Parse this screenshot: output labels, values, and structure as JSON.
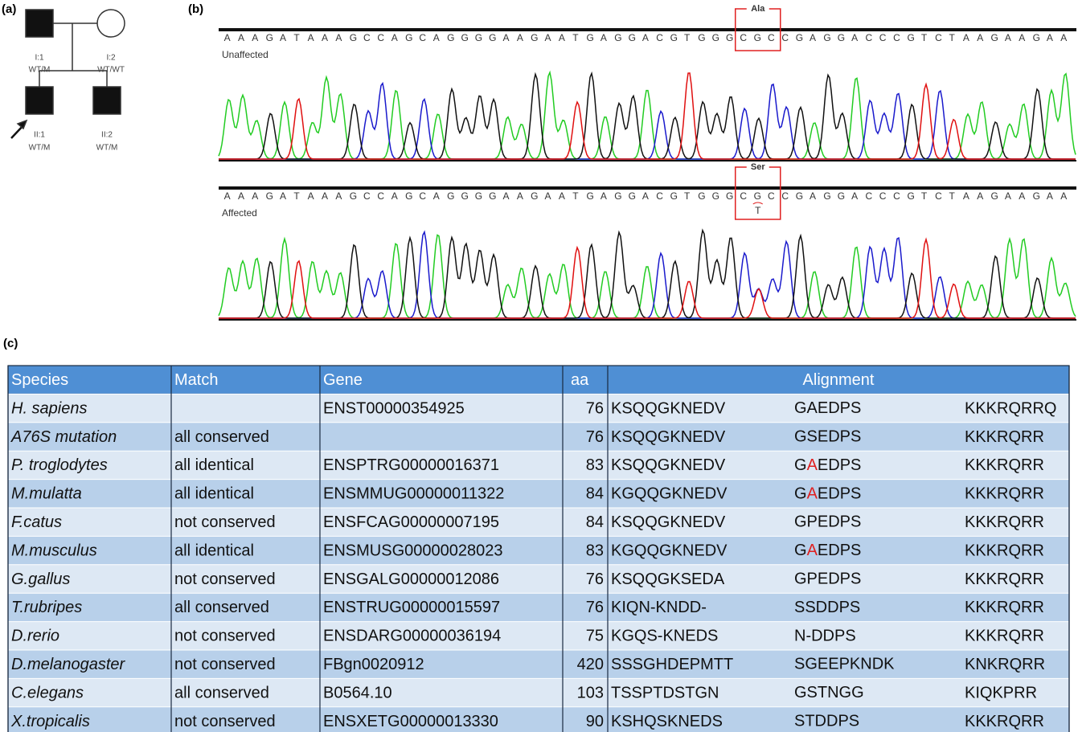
{
  "panel_a": {
    "label": "(a)",
    "individuals": [
      {
        "id": "I:1",
        "genotype": "WT/M"
      },
      {
        "id": "I:2",
        "genotype": "WT/WT"
      },
      {
        "id": "II:1",
        "genotype": "WT/M"
      },
      {
        "id": "II:2",
        "genotype": "WT/M"
      }
    ]
  },
  "panel_b": {
    "label": "(b)",
    "sequence": {
      "before": "AAAGATAAAGCCAGCAGGGGAAGAATGAGGACGTGGG",
      "codon": "CGC",
      "after": "CGAGGACCCGTCTAAGAAGAA"
    },
    "traces": [
      {
        "name": "Unaffected",
        "amino_acid": "Ala"
      },
      {
        "name": "Affected",
        "amino_acid": "Ser",
        "substitution": "T"
      }
    ]
  },
  "panel_c": {
    "label": "(c)",
    "table": {
      "header": [
        "Species",
        "Match",
        "Gene",
        "aa",
        "Alignment"
      ],
      "rows": [
        {
          "species": "H. sapiens",
          "match": "",
          "gene": "ENST00000354925",
          "aa": "76",
          "alignment": [
            "KSQQGKNEDV",
            [
              "GAEDPS"
            ],
            "KKKRQRRQ"
          ]
        },
        {
          "species": "A76S mutation",
          "match": "all conserved",
          "gene": "",
          "aa": "76",
          "alignment": [
            "KSQQGKNEDV",
            [
              "GSEDPS"
            ],
            "KKKRQRR"
          ]
        },
        {
          "species": "P. troglodytes",
          "match": "all identical",
          "gene": "ENSPTRG00000016371",
          "aa": "83",
          "alignment": [
            "KSQQGKNEDV",
            [
              "G",
              "A",
              "EDPS"
            ],
            "KKKRQRR"
          ],
          "highlight": 1
        },
        {
          "species": "M.mulatta",
          "match": "all identical",
          "gene": "ENSMMUG00000011322",
          "aa": "84",
          "alignment": [
            "KGQQGKNEDV",
            [
              "G",
              "A",
              "EDPS"
            ],
            "KKKRQRR"
          ],
          "highlight": 1
        },
        {
          "species": "F.catus",
          "match": "not conserved",
          "gene": "ENSFCAG00000007195",
          "aa": "84",
          "alignment": [
            "KSQQGKNEDV",
            [
              "GPEDPS"
            ],
            "KKKRQRR"
          ]
        },
        {
          "species": "M.musculus",
          "match": "all identical",
          "gene": "ENSMUSG00000028023",
          "aa": "83",
          "alignment": [
            "KGQQGKNEDV",
            [
              "G",
              "A",
              "EDPS"
            ],
            "KKKRQRR"
          ],
          "highlight": 1
        },
        {
          "species": "G.gallus",
          "match": "not conserved",
          "gene": "ENSGALG00000012086",
          "aa": "76",
          "alignment": [
            "KSQQGKSEDA",
            [
              "GPEDPS"
            ],
            "KKKRQRR"
          ]
        },
        {
          "species": "T.rubripes",
          "match": "all conserved",
          "gene": "ENSTRUG00000015597",
          "aa": "76",
          "alignment": [
            "KIQN-KNDD-",
            [
              "SSDDPS"
            ],
            "KKKRQRR"
          ]
        },
        {
          "species": "D.rerio",
          "match": "not conserved",
          "gene": "ENSDARG00000036194",
          "aa": "75",
          "alignment": [
            "KGQS-KNEDS",
            [
              "N-DDPS"
            ],
            "KKKRQRR"
          ]
        },
        {
          "species": "D.melanogaster",
          "match": "not conserved",
          "gene": "FBgn0020912",
          "aa": "420",
          "alignment": [
            "SSSGHDEPMTT",
            [
              "SGEEPKNDK"
            ],
            "KNKRQRR"
          ]
        },
        {
          "species": "C.elegans",
          "match": "all conserved",
          "gene": "B0564.10",
          "aa": "103",
          "alignment": [
            "TSSPTDSTGN",
            [
              "GSTNGG"
            ],
            "KIQKPRR"
          ]
        },
        {
          "species": "X.tropicalis",
          "match": "not conserved",
          "gene": "ENSXETG00000013330",
          "aa": "90",
          "alignment": [
            "KSHQSKNEDS",
            [
              "STDDPS"
            ],
            "KKKRQRR"
          ]
        }
      ]
    }
  }
}
